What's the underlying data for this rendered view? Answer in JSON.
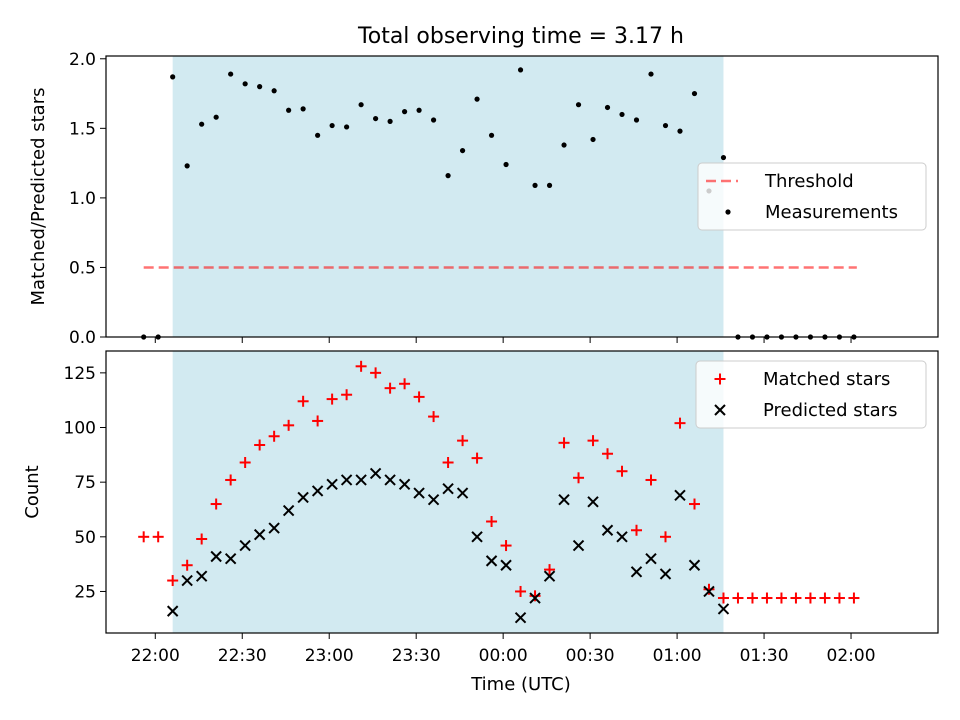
{
  "figure": {
    "title": "Total observing time = 3.17 h",
    "xlabel": "Time (UTC)",
    "xtick_labels": [
      "22:00",
      "22:30",
      "23:00",
      "23:30",
      "00:00",
      "00:30",
      "01:00",
      "01:30",
      "02:00"
    ]
  },
  "colors": {
    "shade": "#add8e6",
    "threshold": "#ff0000",
    "measurements": "#000000",
    "matched": "#ff0000",
    "predicted": "#000000"
  },
  "chart_data": [
    {
      "type": "scatter",
      "panel": "top",
      "ylabel": "Matched/Predicted stars",
      "ylim": [
        0,
        2.02
      ],
      "xlim": [
        -17,
        270
      ],
      "x_unit": "minutes after 22:00 UTC",
      "yticks": [
        0.0,
        0.5,
        1.0,
        1.5,
        2.0
      ],
      "ytick_labels": [
        "0.0",
        "0.5",
        "1.0",
        "1.5",
        "2.0"
      ],
      "shaded_interval": [
        6,
        196
      ],
      "legend": {
        "placement": "center-right",
        "entries": [
          "Threshold",
          "Measurements"
        ]
      },
      "threshold": {
        "name": "Threshold",
        "value": 0.5,
        "x_range": [
          -4,
          242
        ]
      },
      "series": [
        {
          "name": "Measurements",
          "x": [
            -4,
            1,
            6,
            11,
            16,
            21,
            26,
            31,
            36,
            41,
            46,
            51,
            56,
            61,
            66,
            71,
            76,
            81,
            86,
            91,
            96,
            101,
            106,
            111,
            116,
            121,
            126,
            131,
            136,
            141,
            146,
            151,
            156,
            161,
            166,
            171,
            176,
            181,
            186,
            191,
            196,
            201,
            206,
            211,
            216,
            221,
            226,
            231,
            236,
            241
          ],
          "y": [
            0,
            0,
            1.87,
            1.23,
            1.53,
            1.58,
            1.89,
            1.82,
            1.8,
            1.77,
            1.63,
            1.64,
            1.45,
            1.52,
            1.51,
            1.67,
            1.57,
            1.55,
            1.62,
            1.63,
            1.56,
            1.16,
            1.34,
            1.71,
            1.45,
            1.24,
            1.92,
            1.09,
            1.09,
            1.38,
            1.67,
            1.42,
            1.65,
            1.6,
            1.56,
            1.89,
            1.52,
            1.48,
            1.75,
            1.05,
            1.29,
            0,
            0,
            0,
            0,
            0,
            0,
            0,
            0,
            0
          ]
        }
      ]
    },
    {
      "type": "scatter",
      "panel": "bottom",
      "ylabel": "Count",
      "ylim": [
        6,
        135
      ],
      "xlim": [
        -17,
        270
      ],
      "x_unit": "minutes after 22:00 UTC",
      "yticks": [
        25,
        50,
        75,
        100,
        125
      ],
      "ytick_labels": [
        "25",
        "50",
        "75",
        "100",
        "125"
      ],
      "shaded_interval": [
        6,
        196
      ],
      "legend": {
        "placement": "top-right",
        "entries": [
          "Matched stars",
          "Predicted stars"
        ]
      },
      "series": [
        {
          "name": "Matched stars",
          "marker": "+",
          "x": [
            -4,
            1,
            6,
            11,
            16,
            21,
            26,
            31,
            36,
            41,
            46,
            51,
            56,
            61,
            66,
            71,
            76,
            81,
            86,
            91,
            96,
            101,
            106,
            111,
            116,
            121,
            126,
            131,
            136,
            141,
            146,
            151,
            156,
            161,
            166,
            171,
            176,
            181,
            186,
            191,
            196,
            201,
            206,
            211,
            216,
            221,
            226,
            231,
            236,
            241
          ],
          "y": [
            50,
            50,
            30,
            37,
            49,
            65,
            76,
            84,
            92,
            96,
            101,
            112,
            103,
            113,
            115,
            128,
            125,
            118,
            120,
            114,
            105,
            84,
            94,
            86,
            57,
            46,
            25,
            23,
            35,
            93,
            77,
            94,
            88,
            80,
            53,
            76,
            50,
            102,
            65,
            26,
            22,
            22,
            22,
            22,
            22,
            22,
            22,
            22,
            22,
            22
          ]
        },
        {
          "name": "Predicted stars",
          "marker": "x",
          "x": [
            6,
            11,
            16,
            21,
            26,
            31,
            36,
            41,
            46,
            51,
            56,
            61,
            66,
            71,
            76,
            81,
            86,
            91,
            96,
            101,
            106,
            111,
            116,
            121,
            126,
            131,
            136,
            141,
            146,
            151,
            156,
            161,
            166,
            171,
            176,
            181,
            186,
            191,
            196
          ],
          "y": [
            16,
            30,
            32,
            41,
            40,
            46,
            51,
            54,
            62,
            68,
            71,
            74,
            76,
            76,
            79,
            76,
            74,
            70,
            67,
            72,
            70,
            50,
            39,
            37,
            13,
            22,
            32,
            67,
            46,
            66,
            53,
            50,
            34,
            40,
            33,
            69,
            37,
            25,
            17
          ]
        }
      ]
    }
  ]
}
